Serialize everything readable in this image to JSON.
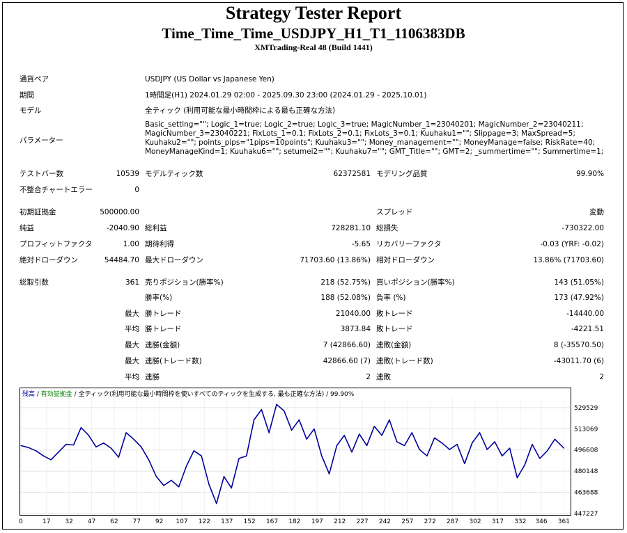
{
  "header": {
    "title": "Strategy Tester Report",
    "subtitle": "Time_Time_Time_USDJPY_H1_T1_1106383DB",
    "server": "XMTrading-Real 48 (Build 1441)"
  },
  "info": {
    "symbol_label": "通貨ペア",
    "symbol_value": "USDJPY (US Dollar vs Japanese Yen)",
    "period_label": "期間",
    "period_value": "1時間足(H1) 2024.01.29 02:00 - 2025.09.30 23:00 (2024.01.29 - 2025.10.01)",
    "model_label": "モデル",
    "model_value": "全ティック (利用可能な最小時間枠による最も正確な方法)",
    "params_label": "パラメーター",
    "params_value": "Basic_setting=\"\"; Logic_1=true; Logic_2=true; Logic_3=true; MagicNumber_1=23040201; MagicNumber_2=23040211; MagicNumber_3=23040221; FixLots_1=0.1; FixLots_2=0.1; FixLots_3=0.1; Kuuhaku1=\"\"; Slippage=3; MaxSpread=5; Kuuhaku2=\"\"; points_pips=\"1pips=10points\"; Kuuhaku3=\"\"; Money_management=\"\"; MoneyManage=false; RiskRate=40; MoneyManageKind=1; Kuuhaku6=\"\"; setumei2=\"\"; Kuuhaku7=\"\"; GMT_Title=\"\"; GMT=2; _summertime=\"\"; Summertime=1;"
  },
  "stats": {
    "bars_label": "テストバー数",
    "bars_value": "10539",
    "ticks_label": "モデルティック数",
    "ticks_value": "62372581",
    "quality_label": "モデリング品質",
    "quality_value": "99.90%",
    "mismatch_label": "不整合チャートエラー",
    "mismatch_value": "0",
    "deposit_label": "初期証拠金",
    "deposit_value": "500000.00",
    "spread_label": "スプレッド",
    "spread_value": "変動",
    "net_label": "純益",
    "net_value": "-2040.90",
    "gross_profit_label": "総利益",
    "gross_profit_value": "728281.10",
    "gross_loss_label": "総損失",
    "gross_loss_value": "-730322.00",
    "pf_label": "プロフィットファクタ",
    "pf_value": "1.00",
    "payoff_label": "期待利得",
    "payoff_value": "-5.65",
    "recovery_label": "リカバリーファクタ",
    "recovery_value": "-0.03 (YRF: -0.02)",
    "abs_dd_label": "絶対ドローダウン",
    "abs_dd_value": "54484.70",
    "max_dd_label": "最大ドローダウン",
    "max_dd_value": "71703.60 (13.86%)",
    "rel_dd_label": "相対ドローダウン",
    "rel_dd_value": "13.86% (71703.60)",
    "trades_label": "総取引数",
    "trades_value": "361",
    "short_label": "売りポジション(勝率%)",
    "short_value": "218 (52.75%)",
    "long_label": "買いポジション(勝率%)",
    "long_value": "143 (51.05%)",
    "win_rate_label": "勝率(%)",
    "win_rate_value": "188 (52.08%)",
    "loss_rate_label": "負率 (%)",
    "loss_rate_value": "173 (47.92%)",
    "max_word": "最大",
    "avg_word": "平均",
    "largest_win_label": "勝トレード",
    "largest_win_value": "21040.00",
    "largest_loss_label": "敗トレード",
    "largest_loss_value": "-14440.00",
    "avg_win_label": "勝トレード",
    "avg_win_value": "3873.84",
    "avg_loss_label": "敗トレード",
    "avg_loss_value": "-4221.51",
    "max_cons_win_amt_label": "連勝(金額)",
    "max_cons_win_amt_value": "7 (42866.60)",
    "max_cons_loss_amt_label": "連敗(金額)",
    "max_cons_loss_amt_value": "8 (-35570.50)",
    "max_cons_win_trades_label": "連勝(トレード数)",
    "max_cons_win_trades_value": "42866.60 (7)",
    "max_cons_loss_trades_label": "連敗(トレード数)",
    "max_cons_loss_trades_value": "-43011.70 (6)",
    "avg_cons_win_label": "連勝",
    "avg_cons_win_value": "2",
    "avg_cons_loss_label": "連敗",
    "avg_cons_loss_value": "2"
  },
  "chart_data": {
    "type": "line",
    "title": "",
    "legend": {
      "balance": "残高",
      "sep1": " / ",
      "equity": "有効証拠金",
      "sep2": " / ",
      "model": "全ティック(利用可能な最小時間枠を使いすべてのティックを生成する, 最も正確な方法)",
      "quality": " / 99.90%"
    },
    "xlabel": "",
    "ylabel": "",
    "xlim": [
      0,
      365
    ],
    "ylim": [
      447227,
      537000
    ],
    "x_ticks": [
      0,
      17,
      32,
      47,
      62,
      77,
      92,
      107,
      122,
      137,
      152,
      167,
      182,
      197,
      212,
      227,
      242,
      257,
      272,
      287,
      302,
      317,
      332,
      346,
      361
    ],
    "y_ticks": [
      447227,
      463688,
      480148,
      496608,
      513069,
      529529
    ],
    "grid": true,
    "series": [
      {
        "name": "残高",
        "color": "#00009c",
        "x": [
          0,
          5,
          10,
          15,
          20,
          25,
          30,
          35,
          40,
          45,
          50,
          55,
          60,
          65,
          70,
          75,
          80,
          85,
          90,
          95,
          100,
          105,
          110,
          115,
          120,
          125,
          130,
          135,
          140,
          145,
          150,
          155,
          160,
          165,
          170,
          175,
          180,
          185,
          190,
          195,
          200,
          205,
          210,
          215,
          220,
          225,
          230,
          235,
          240,
          245,
          250,
          255,
          260,
          265,
          270,
          275,
          280,
          285,
          290,
          295,
          300,
          305,
          310,
          315,
          320,
          325,
          330,
          335,
          340,
          345,
          350,
          355,
          361
        ],
        "values": [
          500000,
          498500,
          496000,
          492000,
          489000,
          495000,
          501000,
          500500,
          514000,
          508000,
          499000,
          502000,
          498000,
          491000,
          510000,
          505000,
          499000,
          489000,
          476000,
          469000,
          473000,
          468000,
          484000,
          496000,
          492000,
          470000,
          455000,
          476000,
          467000,
          490000,
          492000,
          520000,
          528000,
          510000,
          532000,
          527000,
          512000,
          520000,
          505000,
          513000,
          492000,
          478000,
          500000,
          508000,
          495000,
          509000,
          500000,
          515000,
          508000,
          520000,
          503000,
          500000,
          510000,
          497000,
          492000,
          506000,
          502000,
          497000,
          501000,
          486000,
          502000,
          510000,
          497000,
          503000,
          492000,
          498000,
          475000,
          485000,
          501000,
          490000,
          496000,
          505000,
          498000
        ]
      }
    ]
  }
}
